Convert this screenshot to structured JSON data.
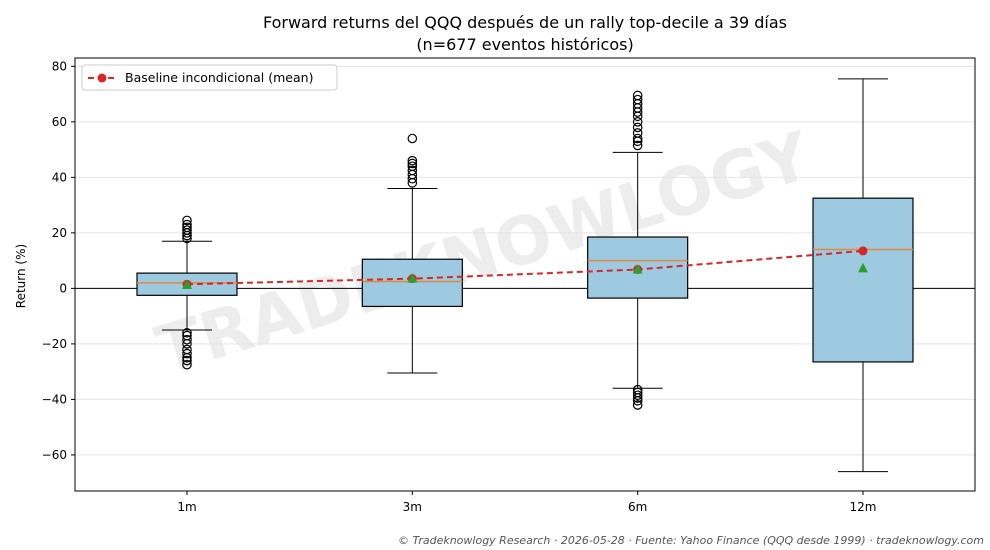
{
  "chart_data": {
    "type": "box",
    "title": "Forward returns del QQQ después de un rally top-decile a 39 días",
    "subtitle": "(n=677 eventos históricos)",
    "ylabel": "Return (%)",
    "xlabel": "",
    "ylim": [
      -73,
      83
    ],
    "yticks": [
      -60,
      -40,
      -20,
      0,
      20,
      40,
      60,
      80
    ],
    "grid": "horizontal",
    "categories": [
      "1m",
      "3m",
      "6m",
      "12m"
    ],
    "boxes": [
      {
        "category": "1m",
        "whisker_low": -15,
        "q1": -2.5,
        "median": 2,
        "q3": 5.5,
        "whisker_high": 17,
        "mean": 1.2,
        "outliers": [
          18,
          19,
          20,
          21,
          22,
          23,
          24.5,
          -16,
          -17,
          -18.5,
          -20,
          -22,
          -23.5,
          -25,
          -26,
          -27.5
        ]
      },
      {
        "category": "3m",
        "whisker_low": -30.5,
        "q1": -6.5,
        "median": 2.5,
        "q3": 10.5,
        "whisker_high": 36,
        "mean": 3.5,
        "outliers": [
          38,
          39.5,
          41,
          42.5,
          44,
          45,
          46,
          54
        ]
      },
      {
        "category": "6m",
        "whisker_low": -36,
        "q1": -3.5,
        "median": 10,
        "q3": 18.5,
        "whisker_high": 49,
        "mean": 6.8,
        "outliers": [
          51.5,
          53,
          54,
          56,
          58,
          60,
          62,
          63.5,
          65,
          66.5,
          68,
          69.5,
          -36.5,
          -37.5,
          -38.5,
          -39.5,
          -40.5,
          -42
        ]
      },
      {
        "category": "12m",
        "whisker_low": -66,
        "q1": -26.5,
        "median": 14,
        "q3": 32.5,
        "whisker_high": 75.5,
        "mean": 7.2,
        "outliers": []
      }
    ],
    "baseline": {
      "name": "Baseline incondicional (mean)",
      "values": [
        1.5,
        3.5,
        6.8,
        13.5
      ],
      "color": "#d62728",
      "style": "dashed"
    },
    "legend_position": "top-left",
    "zero_line": true,
    "colors": {
      "box_fill": "#9ecae1",
      "median": "#e08a3c",
      "mean_marker": "#2ca02c",
      "baseline": "#d62728"
    }
  },
  "watermark": "TRADEKNOWLOGY",
  "footer": "© Tradeknowlogy Research   ·   2026-05-28   ·   Fuente: Yahoo Finance (QQQ desde 1999)   ·   tradeknowlogy.com"
}
